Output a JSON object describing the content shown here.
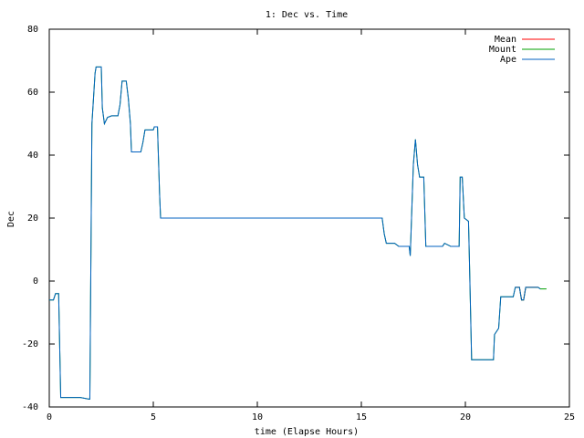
{
  "chart_data": {
    "type": "line",
    "title": "1: Dec vs. Time",
    "x_label": "time (Elapse Hours)",
    "y_label": "Dec",
    "x": [
      0.0,
      0.2,
      0.3,
      0.45,
      0.55,
      1.0,
      1.5,
      1.9,
      1.95,
      2.05,
      2.2,
      2.25,
      2.5,
      2.55,
      2.65,
      2.8,
      3.0,
      3.3,
      3.4,
      3.5,
      3.7,
      3.8,
      3.9,
      3.95,
      4.4,
      4.5,
      4.6,
      5.0,
      5.05,
      5.2,
      5.3,
      5.35,
      10,
      16.0,
      16.1,
      16.2,
      16.6,
      16.8,
      17.3,
      17.35,
      17.5,
      17.6,
      17.7,
      17.8,
      18.0,
      18.1,
      18.9,
      19.0,
      19.3,
      19.7,
      19.75,
      19.85,
      19.95,
      20.15,
      20.2,
      20.3,
      21.0,
      21.35,
      21.4,
      21.6,
      21.7,
      22.3,
      22.4,
      22.6,
      22.7,
      22.8,
      22.9,
      23.5,
      23.6,
      23.9
    ],
    "series": [
      {
        "name": "Mean",
        "color": "#ff0000",
        "values": [
          null,
          null,
          null,
          null,
          null,
          null,
          null,
          null,
          null,
          null,
          null,
          null,
          null,
          null,
          null,
          null,
          null,
          null,
          null,
          null,
          null,
          null,
          null,
          null,
          null,
          null,
          null,
          null,
          null,
          null,
          null,
          null,
          null,
          null,
          null,
          null,
          null,
          null,
          null,
          null,
          null,
          null,
          null,
          null,
          null,
          null,
          null,
          null,
          null,
          null,
          null,
          null,
          null,
          null,
          null,
          null,
          null,
          null,
          null,
          null,
          null,
          null,
          -2,
          -2,
          -6,
          -6,
          -2,
          -2,
          null,
          null
        ]
      },
      {
        "name": "Mount",
        "color": "#00a000",
        "values": [
          -6,
          -6,
          -4,
          -4,
          -37,
          -37,
          -37,
          -37.5,
          -37.5,
          50,
          66,
          68,
          68,
          55,
          50,
          52,
          52.5,
          52.5,
          56,
          63.5,
          63.5,
          58,
          50,
          41,
          41,
          44,
          48,
          48,
          49,
          49,
          28,
          20,
          20,
          20,
          15,
          12,
          12,
          11,
          11,
          8,
          37,
          45,
          37,
          33,
          33,
          11,
          11,
          12,
          11,
          11,
          33,
          33,
          20,
          19,
          5,
          -25,
          -25,
          -25,
          -17,
          -15,
          -5,
          -5,
          -2,
          -2,
          -6,
          -6,
          -2,
          -2,
          -2.5,
          -2.5
        ]
      },
      {
        "name": "Ape",
        "color": "#0060c0",
        "values": [
          -6,
          -6,
          -4,
          -4,
          -37,
          -37,
          -37,
          -37.5,
          -37.5,
          50,
          66,
          68,
          68,
          55,
          50,
          52,
          52.5,
          52.5,
          56,
          63.5,
          63.5,
          58,
          50,
          41,
          41,
          44,
          48,
          48,
          49,
          49,
          28,
          20,
          20,
          20,
          15,
          12,
          12,
          11,
          11,
          8,
          37,
          45,
          37,
          33,
          33,
          11,
          11,
          12,
          11,
          11,
          33,
          33,
          20,
          19,
          5,
          -25,
          -25,
          -25,
          -17,
          -15,
          -5,
          -5,
          -2,
          -2,
          -6,
          -6,
          -2,
          -2,
          -2.5,
          null
        ]
      }
    ],
    "xlim": [
      0,
      25
    ],
    "xticks": [
      0,
      5,
      10,
      15,
      20,
      25
    ],
    "ylim": [
      -40,
      80
    ],
    "yticks": [
      -40,
      -20,
      0,
      20,
      40,
      60,
      80
    ],
    "grid": false,
    "legend": "top-right"
  }
}
